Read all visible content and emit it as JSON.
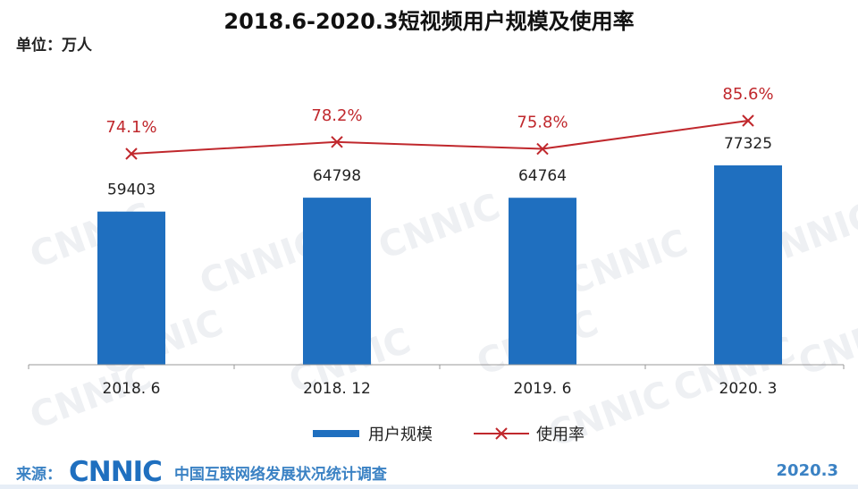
{
  "header": {
    "title": "2018.6-2020.3短视频用户规模及使用率",
    "unit": "单位：万人"
  },
  "footer": {
    "source_label": "来源：",
    "logo_text": "CNNIC",
    "org_name": "中国互联网络发展状况统计调查",
    "date": "2020.3"
  },
  "watermark": "CNNIC",
  "colors": {
    "bar": "#1f6fbf",
    "line": "#c0282d",
    "rate_label": "#c0282d",
    "value_label": "#222222",
    "axis": "#999999"
  },
  "chart_data": {
    "type": "bar",
    "title": "2018.6-2020.3短视频用户规模及使用率",
    "categories": [
      "2018. 6",
      "2018. 12",
      "2019. 6",
      "2020. 3"
    ],
    "series": [
      {
        "name": "用户规模",
        "type": "bar",
        "values": [
          59403,
          64798,
          64764,
          77325
        ],
        "labels": [
          "59403",
          "64798",
          "64764",
          "77325"
        ]
      },
      {
        "name": "使用率",
        "type": "line",
        "marker": "x",
        "values": [
          74.1,
          78.2,
          75.8,
          85.6
        ],
        "labels": [
          "74.1%",
          "78.2%",
          "75.8%",
          "85.6%"
        ]
      }
    ],
    "legend_position": "bottom-center",
    "grid": false
  }
}
